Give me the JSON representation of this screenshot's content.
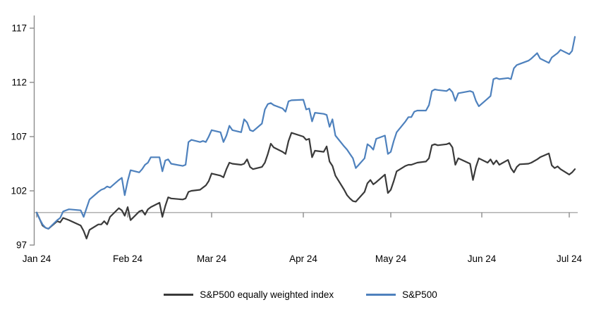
{
  "chart_data": {
    "type": "line",
    "title": "",
    "x_axis": {
      "ticks": [
        "Jan 24",
        "Feb 24",
        "Mar 24",
        "Apr 24",
        "May 24",
        "Jun 24",
        "Jul 24"
      ]
    },
    "y_axis": {
      "ticks": [
        97,
        102,
        107,
        112,
        117
      ],
      "range": [
        97,
        117
      ],
      "baseline_value": 100
    },
    "grid": "off",
    "legend_position": "bottom",
    "dates": [
      "1-1",
      "1-2",
      "1-3",
      "1-4",
      "1-5",
      "1-8",
      "1-9",
      "1-10",
      "1-11",
      "1-12",
      "1-16",
      "1-17",
      "1-18",
      "1-19",
      "1-22",
      "1-23",
      "1-24",
      "1-25",
      "1-26",
      "1-29",
      "1-30",
      "1-31",
      "2-1",
      "2-2",
      "2-5",
      "2-6",
      "2-7",
      "2-8",
      "2-9",
      "2-12",
      "2-13",
      "2-14",
      "2-15",
      "2-16",
      "2-20",
      "2-21",
      "2-22",
      "2-23",
      "2-26",
      "2-27",
      "2-28",
      "2-29",
      "3-1",
      "3-4",
      "3-5",
      "3-6",
      "3-7",
      "3-8",
      "3-11",
      "3-12",
      "3-13",
      "3-14",
      "3-15",
      "3-18",
      "3-19",
      "3-20",
      "3-21",
      "3-22",
      "3-25",
      "3-26",
      "3-27",
      "3-28",
      "4-1",
      "4-2",
      "4-3",
      "4-4",
      "4-5",
      "4-8",
      "4-9",
      "4-10",
      "4-11",
      "4-12",
      "4-15",
      "4-16",
      "4-17",
      "4-18",
      "4-19",
      "4-22",
      "4-23",
      "4-24",
      "4-25",
      "4-26",
      "4-29",
      "4-30",
      "5-1",
      "5-2",
      "5-3",
      "5-6",
      "5-7",
      "5-8",
      "5-9",
      "5-10",
      "5-13",
      "5-14",
      "5-15",
      "5-16",
      "5-17",
      "5-20",
      "5-21",
      "5-22",
      "5-23",
      "5-24",
      "5-28",
      "5-29",
      "5-30",
      "5-31",
      "6-3",
      "6-4",
      "6-5",
      "6-6",
      "6-7",
      "6-10",
      "6-11",
      "6-12",
      "6-13",
      "6-14",
      "6-17",
      "6-18",
      "6-20",
      "6-21",
      "6-24",
      "6-25",
      "6-26",
      "6-27",
      "6-28",
      "7-1",
      "7-2",
      "7-3"
    ],
    "series": [
      {
        "name": "S&P500 equally weighted index",
        "color": "#3a3a3a",
        "values": [
          100.0,
          99.4,
          98.8,
          98.6,
          98.5,
          99.2,
          99.1,
          99.5,
          99.4,
          99.3,
          98.8,
          98.3,
          97.6,
          98.4,
          98.9,
          98.9,
          99.2,
          98.9,
          99.6,
          100.4,
          100.2,
          99.7,
          100.5,
          99.3,
          100.1,
          100.2,
          99.8,
          100.3,
          100.5,
          100.9,
          99.6,
          100.6,
          101.4,
          101.3,
          101.2,
          101.3,
          101.9,
          102.0,
          102.1,
          102.3,
          102.5,
          102.9,
          103.6,
          103.4,
          103.25,
          104.0,
          104.6,
          104.5,
          104.4,
          104.5,
          104.9,
          104.2,
          104.0,
          104.2,
          104.6,
          105.4,
          106.35,
          106.0,
          105.6,
          105.4,
          106.6,
          107.35,
          107.0,
          106.7,
          106.8,
          105.1,
          105.7,
          105.6,
          106.1,
          104.7,
          104.3,
          103.4,
          102.1,
          101.6,
          101.3,
          101.05,
          101.0,
          101.9,
          102.7,
          103.0,
          102.6,
          102.8,
          103.5,
          101.8,
          102.1,
          102.9,
          103.8,
          104.3,
          104.4,
          104.4,
          104.5,
          104.6,
          104.7,
          105.0,
          106.2,
          106.3,
          106.2,
          106.3,
          106.4,
          106.0,
          104.4,
          105.0,
          104.5,
          103.0,
          104.2,
          105.0,
          104.6,
          104.9,
          104.45,
          104.8,
          104.4,
          104.85,
          104.1,
          103.7,
          104.2,
          104.45,
          104.5,
          104.6,
          104.9,
          105.1,
          105.45,
          104.35,
          104.1,
          104.25,
          104.0,
          103.5,
          103.7,
          104.0
        ]
      },
      {
        "name": "S&P500",
        "color": "#4e81bd",
        "values": [
          100.0,
          99.4,
          98.9,
          98.6,
          98.5,
          99.3,
          99.5,
          100.1,
          100.2,
          100.3,
          100.2,
          99.6,
          100.4,
          101.2,
          101.9,
          102.1,
          102.2,
          102.4,
          102.3,
          103.0,
          103.2,
          101.6,
          102.9,
          103.9,
          103.7,
          104.0,
          104.4,
          104.6,
          105.1,
          105.1,
          103.8,
          104.8,
          104.9,
          104.5,
          104.3,
          104.4,
          106.5,
          106.7,
          106.5,
          106.6,
          106.5,
          107.0,
          107.6,
          107.4,
          106.5,
          107.1,
          108.0,
          107.6,
          107.4,
          108.6,
          108.3,
          107.6,
          107.5,
          108.2,
          109.5,
          110.0,
          110.1,
          109.9,
          109.6,
          109.3,
          110.25,
          110.35,
          110.4,
          109.5,
          109.6,
          108.4,
          109.2,
          109.1,
          109.0,
          107.9,
          108.6,
          107.1,
          106.1,
          105.8,
          105.4,
          105.0,
          104.1,
          105.0,
          106.3,
          106.1,
          105.8,
          106.8,
          107.1,
          105.4,
          105.6,
          106.6,
          107.4,
          108.4,
          108.8,
          108.8,
          109.3,
          109.4,
          109.4,
          109.9,
          111.2,
          111.35,
          111.3,
          111.2,
          111.4,
          111.1,
          110.3,
          111.0,
          111.2,
          111.1,
          110.3,
          109.8,
          110.5,
          110.75,
          112.3,
          112.4,
          112.3,
          112.4,
          112.3,
          113.3,
          113.6,
          113.7,
          114.0,
          114.2,
          114.7,
          114.2,
          113.8,
          114.3,
          114.5,
          114.7,
          115.0,
          114.6,
          114.9,
          116.2
        ]
      }
    ],
    "colors": {
      "axis": "#8c8c8c",
      "baseline": "#a8a8a8",
      "text": "#000000"
    }
  },
  "legend": {
    "items": [
      {
        "label": "S&P500 equally weighted index"
      },
      {
        "label": "S&P500"
      }
    ]
  }
}
